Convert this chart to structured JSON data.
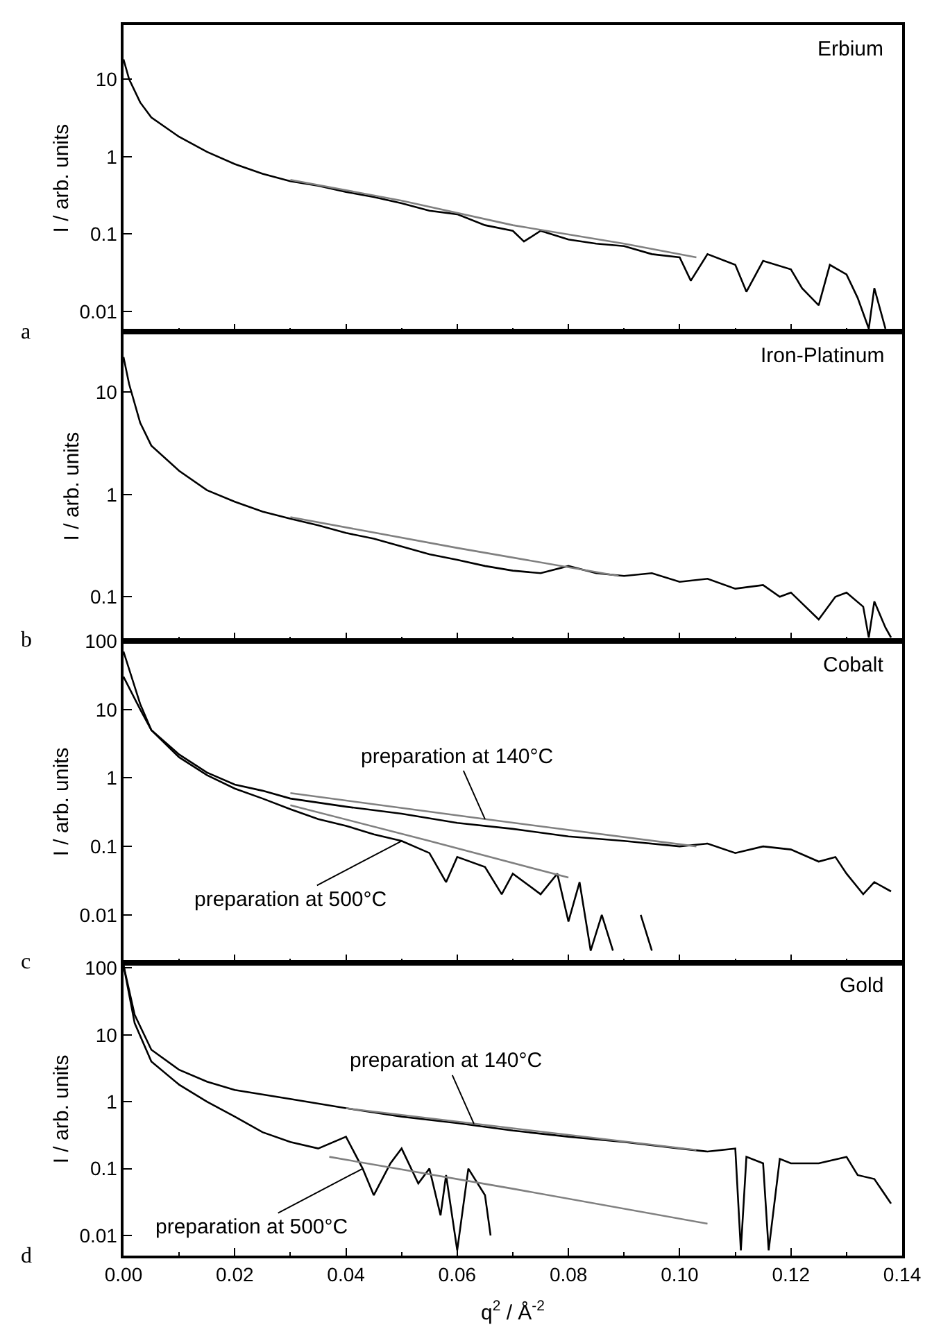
{
  "chart_data": [
    {
      "type": "line",
      "title": "Erbium",
      "ylabel": "I / arb. units",
      "log": "y",
      "xlim": [
        0,
        0.14
      ],
      "ylim": [
        0.0055,
        50
      ],
      "tick_labels": "y",
      "marker": "none",
      "xticks": [
        0,
        0.02,
        0.04,
        0.06,
        0.08,
        0.1,
        0.12,
        0.14
      ],
      "yticks": [
        0.01,
        0.1,
        1,
        10
      ],
      "annotations": [
        "a"
      ],
      "series": [
        {
          "color": "#000000",
          "x": [
            0,
            0.001,
            0.003,
            0.005,
            0.01,
            0.015,
            0.02,
            0.025,
            0.03,
            0.035,
            0.04,
            0.045,
            0.05,
            0.055,
            0.06,
            0.065,
            0.07,
            0.072,
            0.075,
            0.08,
            0.085,
            0.09,
            0.095,
            0.1,
            0.102,
            0.105,
            0.11,
            0.112,
            0.115,
            0.12,
            0.122,
            0.125,
            0.127,
            0.13,
            0.132,
            0.134,
            0.135,
            0.137
          ],
          "values": [
            18,
            10,
            5,
            3.2,
            1.8,
            1.15,
            0.8,
            0.6,
            0.48,
            0.42,
            0.35,
            0.3,
            0.25,
            0.2,
            0.18,
            0.13,
            0.11,
            0.08,
            0.11,
            0.085,
            0.075,
            0.07,
            0.055,
            0.05,
            0.025,
            0.055,
            0.04,
            0.018,
            0.045,
            0.035,
            0.02,
            0.012,
            0.04,
            0.03,
            0.015,
            0.006,
            0.02,
            0.006
          ]
        },
        {
          "color": "#808080",
          "x": [
            0.03,
            0.05,
            0.07,
            0.09,
            0.103
          ],
          "values": [
            0.5,
            0.27,
            0.13,
            0.075,
            0.05
          ]
        }
      ]
    },
    {
      "type": "line",
      "title": "Iron-Platinum",
      "ylabel": "I / arb. units",
      "log": "y",
      "xlim": [
        0,
        0.14
      ],
      "ylim": [
        0.037,
        39
      ],
      "tick_labels": "y",
      "marker": "none",
      "xticks": [
        0,
        0.02,
        0.04,
        0.06,
        0.08,
        0.1,
        0.12,
        0.14
      ],
      "yticks": [
        0.1,
        1,
        10
      ],
      "annotations": [
        "b"
      ],
      "series": [
        {
          "color": "#000000",
          "x": [
            0,
            0.001,
            0.003,
            0.005,
            0.01,
            0.015,
            0.02,
            0.025,
            0.03,
            0.035,
            0.04,
            0.045,
            0.05,
            0.055,
            0.06,
            0.065,
            0.07,
            0.075,
            0.08,
            0.085,
            0.09,
            0.095,
            0.1,
            0.105,
            0.11,
            0.115,
            0.118,
            0.12,
            0.125,
            0.128,
            0.13,
            0.133,
            0.134,
            0.135,
            0.137,
            0.138
          ],
          "values": [
            22,
            12,
            5,
            3,
            1.7,
            1.1,
            0.85,
            0.68,
            0.58,
            0.5,
            0.42,
            0.37,
            0.31,
            0.26,
            0.23,
            0.2,
            0.18,
            0.17,
            0.2,
            0.17,
            0.16,
            0.17,
            0.14,
            0.15,
            0.12,
            0.13,
            0.1,
            0.11,
            0.06,
            0.1,
            0.11,
            0.08,
            0.04,
            0.09,
            0.05,
            0.04
          ]
        },
        {
          "color": "#808080",
          "x": [
            0.03,
            0.06,
            0.089
          ],
          "values": [
            0.6,
            0.3,
            0.16
          ]
        }
      ]
    },
    {
      "type": "line",
      "title": "Cobalt",
      "ylabel": "I / arb. units",
      "log": "y",
      "xlim": [
        0,
        0.14
      ],
      "ylim": [
        0.002,
        100
      ],
      "tick_labels": "y",
      "marker": "none",
      "xticks": [
        0,
        0.02,
        0.04,
        0.06,
        0.08,
        0.1,
        0.12,
        0.14
      ],
      "yticks": [
        0.01,
        0.1,
        1,
        10,
        100
      ],
      "annotations": [
        "c",
        {
          "text": "preparation at 140°C",
          "x": 0.065,
          "y": 0.25
        },
        {
          "text": "preparation at 500°C",
          "x": 0.05,
          "y": 0.12
        }
      ],
      "series": [
        {
          "color": "#000000",
          "x": [
            0,
            0.003,
            0.005,
            0.01,
            0.015,
            0.02,
            0.025,
            0.03,
            0.04,
            0.05,
            0.06,
            0.07,
            0.08,
            0.09,
            0.1,
            0.105,
            0.11,
            0.115,
            0.12,
            0.125,
            0.128,
            0.13,
            0.133,
            0.135,
            0.138
          ],
          "values": [
            30,
            10,
            5,
            2.2,
            1.2,
            0.8,
            0.65,
            0.5,
            0.38,
            0.3,
            0.22,
            0.18,
            0.14,
            0.12,
            0.1,
            0.11,
            0.08,
            0.1,
            0.09,
            0.06,
            0.07,
            0.04,
            0.02,
            0.03,
            0.022
          ]
        },
        {
          "color": "#000000",
          "x": [
            0,
            0.003,
            0.005,
            0.01,
            0.015,
            0.02,
            0.025,
            0.03,
            0.035,
            0.04,
            0.045,
            0.05,
            0.055,
            0.058,
            0.06,
            0.065,
            0.068,
            0.07,
            0.075,
            0.078,
            0.08,
            0.082,
            0.084,
            0.086,
            0.088,
            0.09,
            0.093,
            0.095
          ],
          "values": [
            70,
            12,
            5,
            2,
            1.1,
            0.7,
            0.5,
            0.35,
            0.25,
            0.2,
            0.15,
            0.12,
            0.08,
            0.03,
            0.07,
            0.05,
            0.02,
            0.04,
            0.02,
            0.04,
            0.008,
            0.03,
            0.003,
            0.01,
            0.003,
            null,
            0.01,
            0.003
          ]
        },
        {
          "color": "#808080",
          "x": [
            0.03,
            0.065,
            0.103
          ],
          "values": [
            0.6,
            0.25,
            0.1
          ]
        },
        {
          "color": "#808080",
          "x": [
            0.03,
            0.055,
            0.08
          ],
          "values": [
            0.4,
            0.12,
            0.035
          ]
        }
      ]
    },
    {
      "type": "line",
      "title": "Gold",
      "ylabel": "I / arb. units",
      "xlabel": "q$^{2}$ / Å$^{-2}$",
      "log": "y",
      "xlim": [
        0,
        0.14
      ],
      "ylim": [
        0.005,
        120
      ],
      "marker": "none",
      "xticks": [
        {
          "value": 0,
          "label": "0.00"
        },
        {
          "value": 0.02,
          "label": "0.02"
        },
        {
          "value": 0.04,
          "label": "0.04"
        },
        {
          "value": 0.06,
          "label": "0.06"
        },
        {
          "value": 0.08,
          "label": "0.08"
        },
        {
          "value": 0.1,
          "label": "0.10"
        },
        {
          "value": 0.12,
          "label": "0.12"
        },
        {
          "value": 0.14,
          "label": "0.14"
        }
      ],
      "yticks": [
        0.01,
        0.1,
        1,
        10,
        100
      ],
      "annotations": [
        "d",
        {
          "text": "preparation at 140°C",
          "x": 0.063,
          "y": 0.47
        },
        {
          "text": "preparation at 500°C",
          "x": 0.043,
          "y": 0.1
        }
      ],
      "series": [
        {
          "color": "#000000",
          "x": [
            0,
            0.002,
            0.005,
            0.01,
            0.015,
            0.02,
            0.03,
            0.04,
            0.05,
            0.06,
            0.07,
            0.08,
            0.09,
            0.1,
            0.105,
            0.11,
            0.111,
            0.112,
            0.115,
            0.116,
            0.118,
            0.12,
            0.125,
            0.13,
            0.132,
            0.135,
            0.138
          ],
          "values": [
            110,
            20,
            6,
            3,
            2,
            1.5,
            1.1,
            0.8,
            0.6,
            0.48,
            0.37,
            0.3,
            0.25,
            0.2,
            0.18,
            0.2,
            0.006,
            0.15,
            0.12,
            0.006,
            0.14,
            0.12,
            0.12,
            0.15,
            0.08,
            0.07,
            0.03
          ]
        },
        {
          "color": "#000000",
          "x": [
            0,
            0.002,
            0.005,
            0.01,
            0.015,
            0.02,
            0.025,
            0.03,
            0.035,
            0.04,
            0.043,
            0.045,
            0.048,
            0.05,
            0.053,
            0.055,
            0.057,
            0.058,
            0.06,
            0.062,
            0.065,
            0.066
          ],
          "values": [
            110,
            15,
            4,
            1.8,
            1,
            0.6,
            0.35,
            0.25,
            0.2,
            0.3,
            0.1,
            0.04,
            0.12,
            0.2,
            0.06,
            0.1,
            0.02,
            0.08,
            0.006,
            0.1,
            0.04,
            0.01
          ]
        },
        {
          "color": "#808080",
          "x": [
            0.04,
            0.063,
            0.07,
            0.103
          ],
          "values": [
            0.8,
            0.47,
            0.4,
            0.19
          ]
        },
        {
          "color": "#808080",
          "x": [
            0.037,
            0.07,
            0.105
          ],
          "values": [
            0.15,
            0.05,
            0.015
          ]
        }
      ]
    }
  ]
}
